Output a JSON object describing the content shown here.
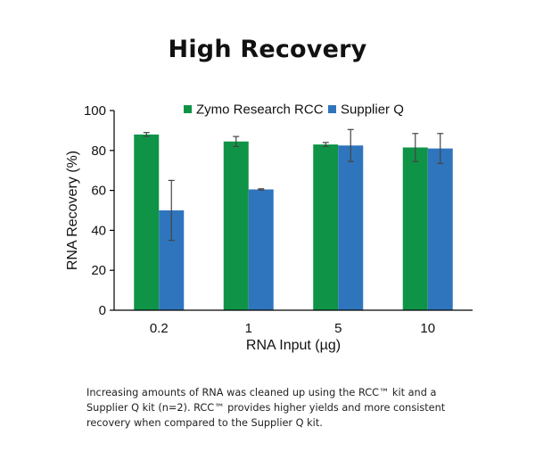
{
  "title": "High Recovery",
  "caption": "Increasing amounts of RNA was cleaned up using the RCC™ kit and a Supplier Q kit (n=2). RCC™ provides higher yields and more consistent recovery when compared to the Supplier Q kit.",
  "chart_data": {
    "type": "bar",
    "categories": [
      "0.2",
      "1",
      "5",
      "10"
    ],
    "series": [
      {
        "name": "Zymo Research RCC",
        "color": "#0f9447",
        "values": [
          88,
          84.5,
          83,
          81.5
        ],
        "error": [
          1,
          2.5,
          1,
          7
        ]
      },
      {
        "name": "Supplier Q",
        "color": "#2f75bd",
        "values": [
          50,
          60.5,
          82.5,
          81
        ],
        "error": [
          15,
          0.3,
          8,
          7.5
        ]
      }
    ],
    "xlabel": "RNA Input (µg)",
    "ylabel": "RNA Recovery (%)",
    "ylim": [
      0,
      100
    ],
    "yticks": [
      "0",
      "20",
      "40",
      "60",
      "80",
      "100"
    ],
    "grid": false,
    "legend_position": "top"
  }
}
